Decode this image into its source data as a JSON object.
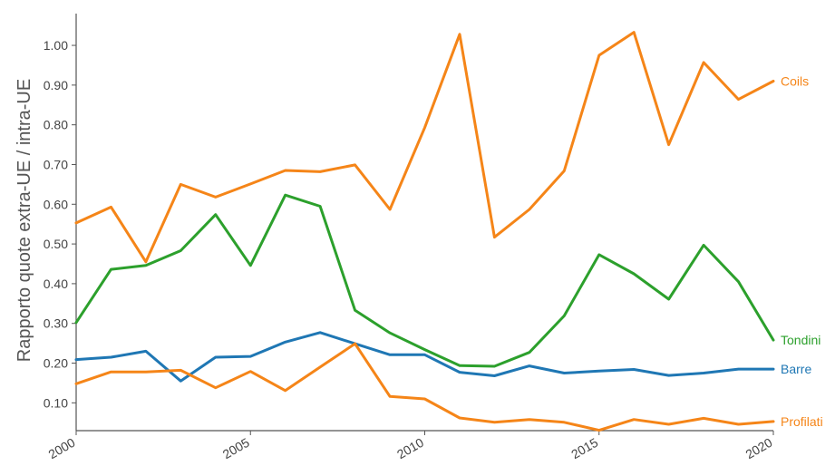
{
  "chart_data": {
    "type": "line",
    "title": "",
    "xlabel": "",
    "ylabel": "Rapporto quote extra-UE / intra-UE",
    "xlim": [
      2000,
      2020
    ],
    "ylim": [
      0.03,
      1.08
    ],
    "x_ticks": [
      2000,
      2005,
      2010,
      2015,
      2020
    ],
    "y_ticks": [
      "0.10",
      "0.20",
      "0.30",
      "0.40",
      "0.50",
      "0.60",
      "0.70",
      "0.80",
      "0.90",
      "1.00"
    ],
    "grid": false,
    "legend": "inline labels at line ends",
    "x": [
      2000,
      2001,
      2002,
      2003,
      2004,
      2005,
      2006,
      2007,
      2008,
      2009,
      2010,
      2011,
      2012,
      2013,
      2014,
      2015,
      2016,
      2017,
      2018,
      2019,
      2020
    ],
    "series": [
      {
        "name": "Coils",
        "color": "#f58518",
        "values": [
          0.553,
          0.593,
          0.455,
          0.65,
          0.618,
          0.651,
          0.685,
          0.682,
          0.699,
          0.587,
          0.793,
          1.028,
          0.517,
          0.587,
          0.684,
          0.975,
          1.033,
          0.75,
          0.957,
          0.864,
          0.91
        ]
      },
      {
        "name": "Tondini",
        "color": "#2ca02c",
        "values": [
          0.302,
          0.436,
          0.446,
          0.483,
          0.574,
          0.446,
          0.623,
          0.595,
          0.333,
          0.276,
          0.234,
          0.194,
          0.192,
          0.227,
          0.319,
          0.473,
          0.425,
          0.361,
          0.497,
          0.405,
          0.258
        ]
      },
      {
        "name": "Barre",
        "color": "#1f77b4",
        "values": [
          0.209,
          0.215,
          0.23,
          0.155,
          0.215,
          0.217,
          0.253,
          0.277,
          0.249,
          0.221,
          0.221,
          0.177,
          0.168,
          0.193,
          0.175,
          0.18,
          0.184,
          0.169,
          0.175,
          0.185,
          0.185
        ]
      },
      {
        "name": "Profilati",
        "color": "#f58518",
        "values": [
          0.148,
          0.178,
          0.178,
          0.182,
          0.138,
          0.179,
          0.131,
          0.19,
          0.249,
          0.116,
          0.11,
          0.062,
          0.051,
          0.058,
          0.051,
          0.031,
          0.058,
          0.046,
          0.061,
          0.046,
          0.053
        ]
      }
    ]
  }
}
